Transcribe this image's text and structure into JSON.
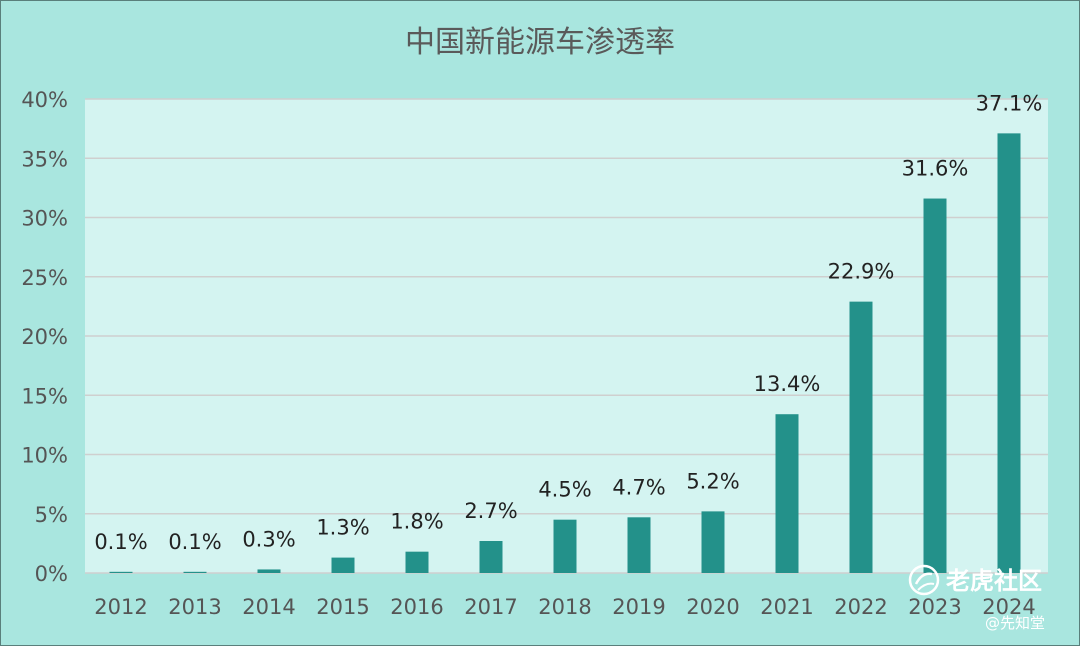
{
  "chart_data": {
    "type": "bar",
    "title": "中国新能源车渗透率",
    "categories": [
      "2012",
      "2013",
      "2014",
      "2015",
      "2016",
      "2017",
      "2018",
      "2019",
      "2020",
      "2021",
      "2022",
      "2023",
      "2024"
    ],
    "values": [
      0.1,
      0.1,
      0.3,
      1.3,
      1.8,
      2.7,
      4.5,
      4.7,
      5.2,
      13.4,
      22.9,
      31.6,
      37.1
    ],
    "data_labels": [
      "0.1%",
      "0.1%",
      "0.3%",
      "1.3%",
      "1.8%",
      "2.7%",
      "4.5%",
      "4.7%",
      "5.2%",
      "13.4%",
      "22.9%",
      "31.6%",
      "37.1%"
    ],
    "yticks": [
      0,
      5,
      10,
      15,
      20,
      25,
      30,
      35,
      40
    ],
    "ytick_labels": [
      "0%",
      "5%",
      "10%",
      "15%",
      "20%",
      "25%",
      "30%",
      "35%",
      "40%"
    ],
    "ylim": [
      0,
      40
    ],
    "grid": true,
    "legend": "none",
    "bar_color": "#23918a",
    "plot_bg": "#d4f4f1",
    "outer_bg": "#a9e6df"
  },
  "watermark": {
    "line1": "老虎社区",
    "line2": "@先知堂",
    "icon": "tiger-community-logo-icon"
  }
}
